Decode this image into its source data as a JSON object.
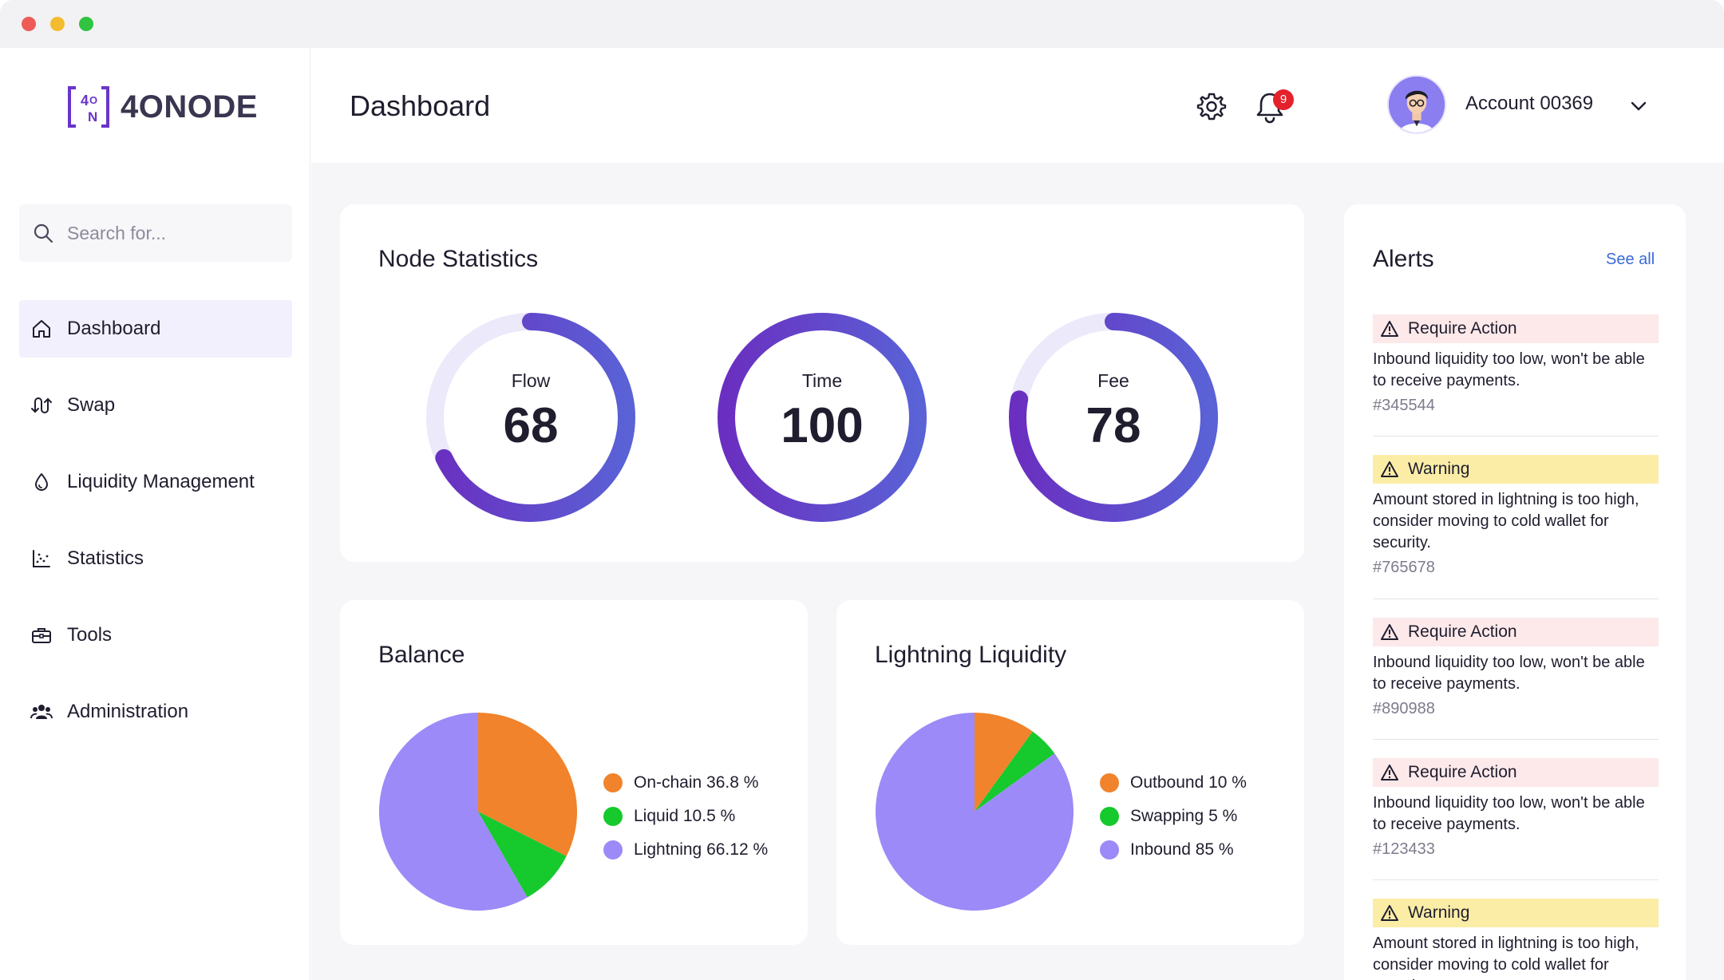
{
  "app": {
    "logo_text": "4ONODE",
    "logo_mark_text": "4ON"
  },
  "search": {
    "placeholder": "Search for..."
  },
  "sidebar": {
    "items": [
      {
        "label": "Dashboard",
        "icon": "home-icon",
        "active": true
      },
      {
        "label": "Swap",
        "icon": "swap-icon"
      },
      {
        "label": "Liquidity Management",
        "icon": "droplet-icon"
      },
      {
        "label": "Statistics",
        "icon": "chart-icon"
      },
      {
        "label": "Tools",
        "icon": "toolbox-icon"
      },
      {
        "label": "Administration",
        "icon": "users-icon"
      }
    ]
  },
  "header": {
    "title": "Dashboard",
    "notification_count": "9",
    "account_name": "Account 00369"
  },
  "node_statistics": {
    "title": "Node Statistics",
    "gauges": [
      {
        "label": "Flow",
        "value": "68",
        "percent": 68
      },
      {
        "label": "Time",
        "value": "100",
        "percent": 100
      },
      {
        "label": "Fee",
        "value": "78",
        "percent": 78
      }
    ]
  },
  "balance": {
    "title": "Balance",
    "legend": [
      "On-chain 36.8 %",
      "Liquid 10.5 %",
      "Lightning 66.12 %"
    ]
  },
  "lightning_liquidity": {
    "title": "Lightning Liquidity",
    "legend": [
      "Outbound 10 %",
      "Swapping 5 %",
      "Inbound 85 %"
    ]
  },
  "alerts": {
    "title": "Alerts",
    "see_all": "See all",
    "items": [
      {
        "type": "Require Action",
        "kind": "action",
        "message": "Inbound liquidity too low, won't be able to receive payments.",
        "id": "#345544"
      },
      {
        "type": "Warning",
        "kind": "warning",
        "message": "Amount stored in lightning is too high, consider moving to cold wallet for security.",
        "id": "#765678"
      },
      {
        "type": "Require Action",
        "kind": "action",
        "message": "Inbound liquidity too low, won't be able to receive payments.",
        "id": "#890988"
      },
      {
        "type": "Require Action",
        "kind": "action",
        "message": "Inbound liquidity too low, won't be able to receive payments.",
        "id": "#123433"
      },
      {
        "type": "Warning",
        "kind": "warning",
        "message": "Amount stored in lightning is too high, consider moving to cold wallet for security.",
        "id": ""
      }
    ]
  },
  "chart_data": [
    {
      "type": "pie",
      "title": "Balance",
      "categories": [
        "On-chain",
        "Liquid",
        "Lightning"
      ],
      "values": [
        36.8,
        10.5,
        66.12
      ],
      "colors": [
        "#f0832c",
        "#16c92c",
        "#9b8af8"
      ]
    },
    {
      "type": "pie",
      "title": "Lightning Liquidity",
      "categories": [
        "Outbound",
        "Swapping",
        "Inbound"
      ],
      "values": [
        10,
        5,
        85
      ],
      "colors": [
        "#f0832c",
        "#16c92c",
        "#9b8af8"
      ]
    }
  ],
  "colors": {
    "accent": "#6a34c9",
    "ring_start": "#6a2fc0",
    "ring_end": "#5a62d6",
    "ring_track": "#ebe9fa",
    "link": "#3b6bd6",
    "badge": "#e5212b"
  }
}
